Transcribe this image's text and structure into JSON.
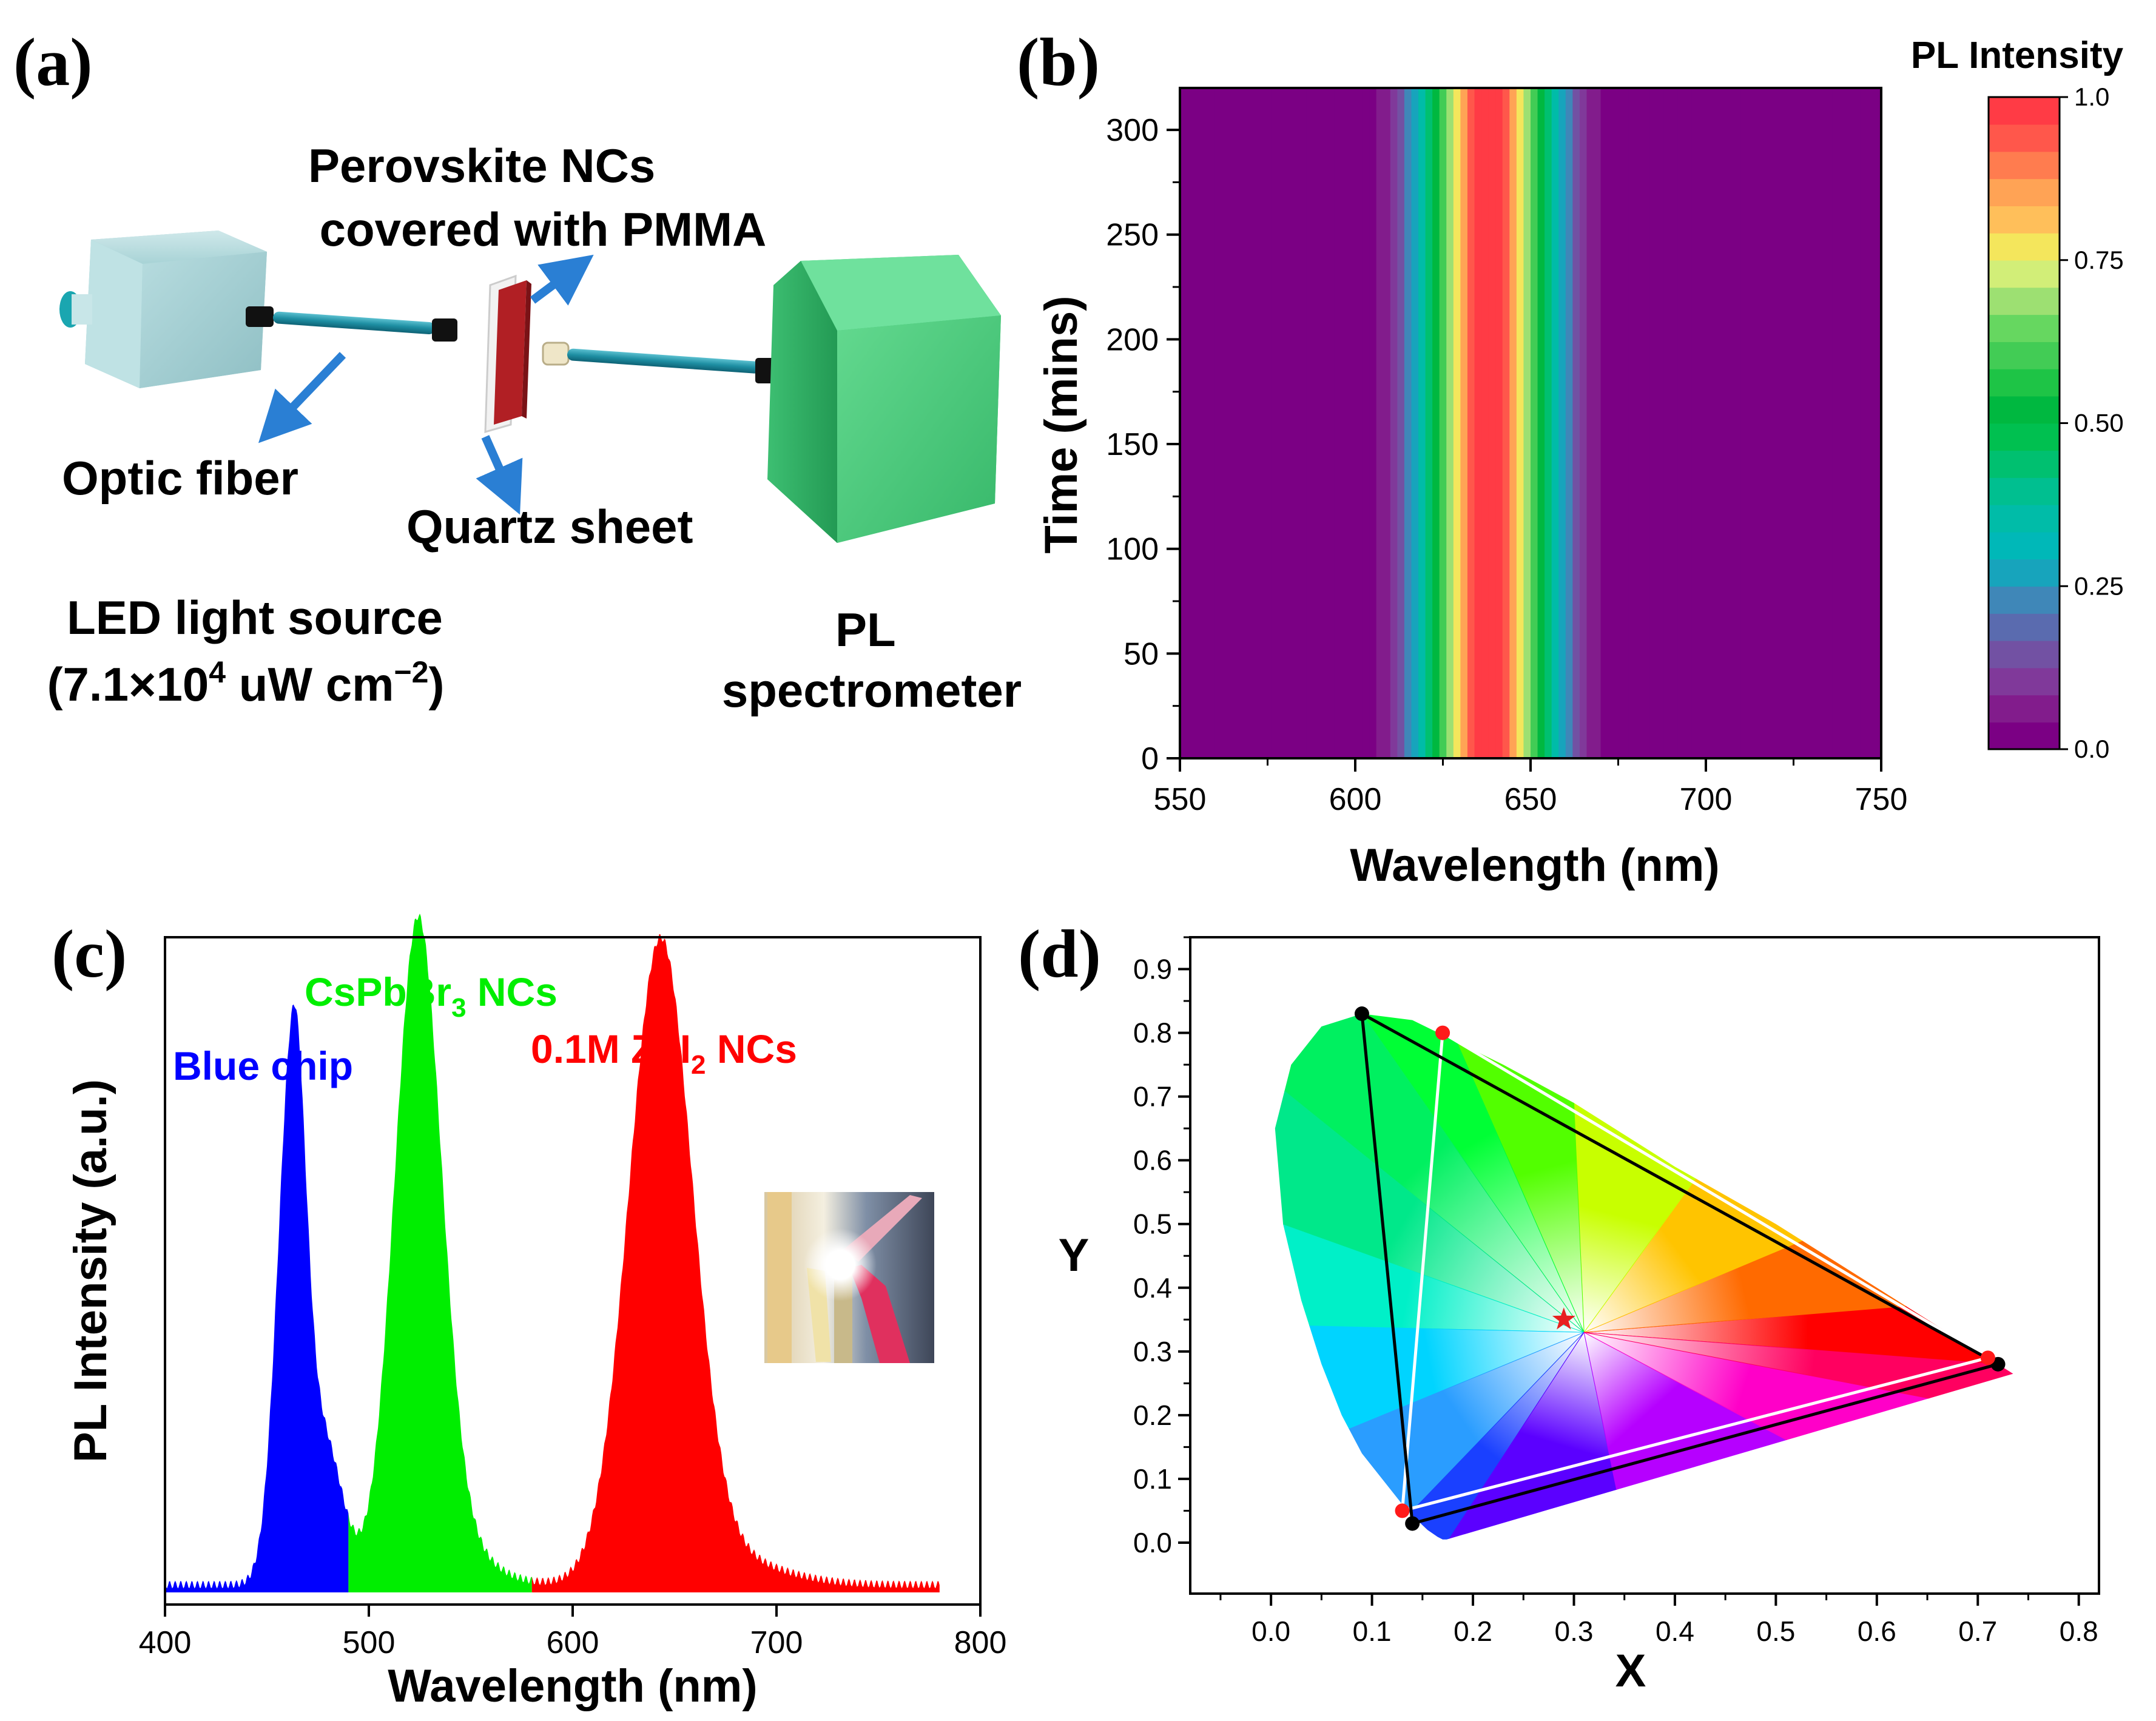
{
  "chart_data": [
    {
      "panel": "(a)",
      "type": "other",
      "labels": {
        "sample": [
          "Perovskite NCs",
          "covered with PMMA"
        ],
        "fiber": "Optic fiber",
        "quartz": "Quartz sheet",
        "led": [
          "LED light source",
          "(7.1×10",
          "4",
          " uW cm",
          "−2",
          ")"
        ],
        "pl": [
          "PL",
          "spectrometer"
        ]
      }
    },
    {
      "panel": "(b)",
      "type": "heatmap",
      "xlabel": "Wavelength (nm)",
      "ylabel": "Time (mins)",
      "xlim": [
        550,
        750
      ],
      "ylim": [
        0,
        320
      ],
      "xticks": [
        "550",
        "600",
        "650",
        "700",
        "750"
      ],
      "yticks": [
        "0",
        "50",
        "100",
        "150",
        "200",
        "250",
        "300"
      ],
      "peak_wavelength": 638,
      "fwhm_sigma": 13,
      "colorbar": {
        "title": "PL Intensity",
        "range": [
          0,
          1
        ],
        "ticks": [
          "0.0",
          "0.25",
          "0.50",
          "0.75",
          "1.0"
        ],
        "levels": 24,
        "colors": [
          "#7b0084",
          "#821c8c",
          "#80399a",
          "#7251a3",
          "#5a6baf",
          "#3f87b8",
          "#17a4bc",
          "#00b8b8",
          "#00bca8",
          "#00bf90",
          "#00c070",
          "#00c050",
          "#00b840",
          "#1ec446",
          "#42cc55",
          "#66d760",
          "#9de072",
          "#d2ee78",
          "#f4e65c",
          "#ffbf5a",
          "#ffa355",
          "#ff7c4f",
          "#ff574b",
          "#ff3b45"
        ]
      }
    },
    {
      "panel": "(c)",
      "type": "area",
      "xlabel": "Wavelength (nm)",
      "ylabel": "PL Intensity (a.u.)",
      "xlim": [
        400,
        800
      ],
      "xticks": [
        "400",
        "500",
        "600",
        "700",
        "800"
      ],
      "series": [
        {
          "name": "Blue chip",
          "color": "#0000ff",
          "range": [
            400,
            490
          ],
          "peak_x": 463,
          "peak_y": 0.83
        },
        {
          "name": "CsPbBr3 NCs",
          "color": "#00ee00",
          "range": [
            490,
            580
          ],
          "peak_x": 524,
          "peak_y": 0.98
        },
        {
          "name": "0.1M ZnI2 NCs",
          "color": "#ff0000",
          "range": [
            580,
            780
          ],
          "peak_x": 643,
          "peak_y": 0.95
        }
      ],
      "legend": {
        "blue": "Blue chip",
        "green": [
          "CsPbBr",
          "3",
          " NCs"
        ],
        "red": [
          "0.1M ZnI",
          "2",
          " NCs"
        ]
      }
    },
    {
      "panel": "(d)",
      "type": "scatter",
      "xlabel": "X",
      "ylabel": "Y",
      "xlim": [
        -0.08,
        0.82
      ],
      "ylim": [
        -0.08,
        0.95
      ],
      "xticks": [
        "0.0",
        "0.1",
        "0.2",
        "0.3",
        "0.4",
        "0.5",
        "0.6",
        "0.7",
        "0.8"
      ],
      "yticks": [
        "0.0",
        "0.1",
        "0.2",
        "0.3",
        "0.4",
        "0.5",
        "0.6",
        "0.7",
        "0.8",
        "0.9"
      ],
      "triangle_black": [
        [
          0.09,
          0.83
        ],
        [
          0.72,
          0.28
        ],
        [
          0.14,
          0.03
        ]
      ],
      "triangle_white": [
        [
          0.17,
          0.8
        ],
        [
          0.71,
          0.29
        ],
        [
          0.13,
          0.05
        ]
      ],
      "white_point": [
        0.29,
        0.35
      ],
      "locus": [
        [
          0.174,
          0.005
        ],
        [
          0.17,
          0.005
        ],
        [
          0.165,
          0.009
        ],
        [
          0.155,
          0.02
        ],
        [
          0.145,
          0.035
        ],
        [
          0.135,
          0.05
        ],
        [
          0.12,
          0.08
        ],
        [
          0.09,
          0.14
        ],
        [
          0.07,
          0.2
        ],
        [
          0.05,
          0.28
        ],
        [
          0.03,
          0.38
        ],
        [
          0.012,
          0.5
        ],
        [
          0.004,
          0.65
        ],
        [
          0.02,
          0.75
        ],
        [
          0.05,
          0.81
        ],
        [
          0.09,
          0.83
        ],
        [
          0.14,
          0.82
        ],
        [
          0.23,
          0.75
        ],
        [
          0.3,
          0.69
        ],
        [
          0.4,
          0.59
        ],
        [
          0.5,
          0.5
        ],
        [
          0.6,
          0.4
        ],
        [
          0.7,
          0.3
        ],
        [
          0.735,
          0.265
        ]
      ]
    }
  ]
}
